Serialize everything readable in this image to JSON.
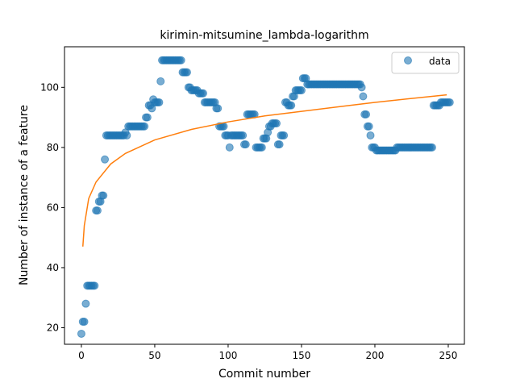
{
  "chart_data": {
    "type": "scatter",
    "title": "kirimin-mitsumine_lambda-logarithm",
    "xlabel": "Commit number",
    "ylabel": "Number of instance of a feature",
    "xlim": [
      -11.5,
      261
    ],
    "ylim": [
      14.5,
      113.5
    ],
    "xticks": [
      0,
      50,
      100,
      150,
      200,
      250
    ],
    "yticks": [
      20,
      40,
      60,
      80,
      100
    ],
    "grid": false,
    "legend": {
      "position": "top-right",
      "entries": [
        {
          "label": "data",
          "marker": "circle",
          "color": "#1f77b4"
        }
      ]
    },
    "colors": {
      "scatter": "#1f77b4",
      "fit": "#ff7f0e"
    },
    "series": [
      {
        "name": "data",
        "kind": "scatter",
        "segments": [
          [
            0,
            0,
            18
          ],
          [
            1,
            1,
            22
          ],
          [
            2,
            2,
            22
          ],
          [
            3,
            3,
            28
          ],
          [
            4,
            9,
            34
          ],
          [
            10,
            11,
            59
          ],
          [
            12,
            13,
            62
          ],
          [
            14,
            15,
            64
          ],
          [
            16,
            16,
            76
          ],
          [
            17,
            29,
            84
          ],
          [
            30,
            30,
            85
          ],
          [
            31,
            31,
            84
          ],
          [
            32,
            43,
            87
          ],
          [
            44,
            45,
            90
          ],
          [
            46,
            47,
            94
          ],
          [
            48,
            48,
            93
          ],
          [
            49,
            49,
            96
          ],
          [
            50,
            53,
            95
          ],
          [
            54,
            54,
            102
          ],
          [
            55,
            68,
            109
          ],
          [
            69,
            72,
            105
          ],
          [
            73,
            74,
            100
          ],
          [
            75,
            79,
            99
          ],
          [
            80,
            83,
            98
          ],
          [
            84,
            91,
            95
          ],
          [
            92,
            93,
            93
          ],
          [
            94,
            97,
            87
          ],
          [
            98,
            99,
            84
          ],
          [
            100,
            100,
            84
          ],
          [
            101,
            101,
            80
          ],
          [
            102,
            110,
            84
          ],
          [
            111,
            112,
            81
          ],
          [
            113,
            118,
            91
          ],
          [
            119,
            123,
            80
          ],
          [
            124,
            126,
            83
          ],
          [
            127,
            127,
            85
          ],
          [
            128,
            129,
            87
          ],
          [
            130,
            133,
            88
          ],
          [
            134,
            135,
            81
          ],
          [
            136,
            138,
            84
          ],
          [
            139,
            140,
            95
          ],
          [
            141,
            143,
            94
          ],
          [
            144,
            145,
            97
          ],
          [
            146,
            150,
            99
          ],
          [
            151,
            153,
            103
          ],
          [
            154,
            190,
            101
          ],
          [
            191,
            191,
            100
          ],
          [
            192,
            192,
            97
          ],
          [
            193,
            194,
            91
          ],
          [
            195,
            196,
            87
          ],
          [
            197,
            197,
            84
          ],
          [
            198,
            200,
            80
          ],
          [
            201,
            214,
            79
          ],
          [
            215,
            239,
            80
          ],
          [
            240,
            244,
            94
          ],
          [
            245,
            251,
            95
          ]
        ]
      },
      {
        "name": "",
        "kind": "line",
        "function": "logarithmic",
        "points": [
          [
            1,
            47
          ],
          [
            2,
            54
          ],
          [
            5,
            63
          ],
          [
            10,
            68.5
          ],
          [
            20,
            74.5
          ],
          [
            30,
            78
          ],
          [
            50,
            82.5
          ],
          [
            75,
            86
          ],
          [
            100,
            88.5
          ],
          [
            125,
            90.5
          ],
          [
            150,
            92
          ],
          [
            175,
            93.5
          ],
          [
            200,
            95
          ],
          [
            225,
            96.3
          ],
          [
            249,
            97.5
          ]
        ]
      }
    ]
  }
}
